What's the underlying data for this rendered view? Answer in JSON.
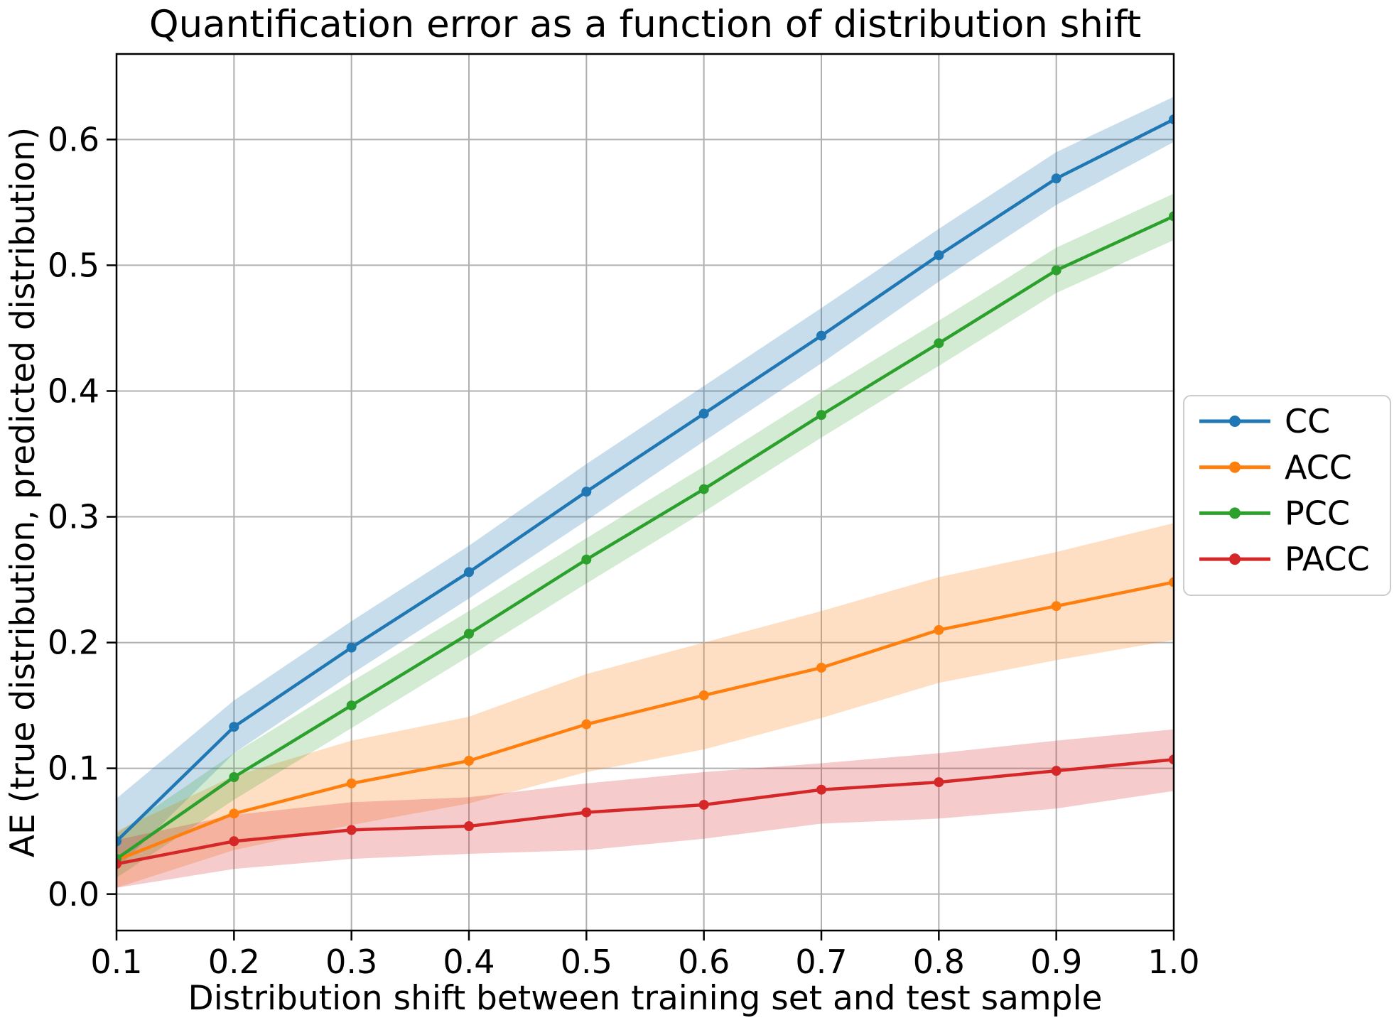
{
  "chart_data": {
    "type": "line",
    "title": "Quantification error as a function of distribution shift",
    "xlabel": "Distribution shift between training set and test sample",
    "ylabel": "AE (true distribution, predicted distribution)",
    "x": [
      0.1,
      0.2,
      0.3,
      0.4,
      0.5,
      0.6,
      0.7,
      0.8,
      0.9,
      1.0
    ],
    "x_tick_labels": [
      "0.1",
      "0.2",
      "0.3",
      "0.4",
      "0.5",
      "0.6",
      "0.7",
      "0.8",
      "0.9",
      "1.0"
    ],
    "y_ticks": [
      0.0,
      0.1,
      0.2,
      0.3,
      0.4,
      0.5,
      0.6
    ],
    "y_tick_labels": [
      "0.0",
      "0.1",
      "0.2",
      "0.3",
      "0.4",
      "0.5",
      "0.6"
    ],
    "xlim": [
      0.1,
      1.0
    ],
    "ylim": [
      -0.029,
      0.668
    ],
    "grid": true,
    "grid_color": "#b0b0b0",
    "spine_color": "#000000",
    "legend": {
      "position": "right-outside",
      "border_color": "#cccccc",
      "entries": [
        "CC",
        "ACC",
        "PCC",
        "PACC"
      ]
    },
    "series": [
      {
        "name": "CC",
        "color": "#1f77b4",
        "band_alpha": 0.25,
        "values": [
          0.042,
          0.133,
          0.196,
          0.256,
          0.32,
          0.382,
          0.444,
          0.508,
          0.569,
          0.616
        ],
        "band_lower": [
          0.02,
          0.112,
          0.175,
          0.235,
          0.297,
          0.36,
          0.422,
          0.487,
          0.548,
          0.598
        ],
        "band_upper": [
          0.076,
          0.154,
          0.217,
          0.277,
          0.342,
          0.404,
          0.466,
          0.529,
          0.59,
          0.634
        ]
      },
      {
        "name": "ACC",
        "color": "#ff7f0e",
        "band_alpha": 0.25,
        "values": [
          0.027,
          0.064,
          0.088,
          0.106,
          0.135,
          0.158,
          0.18,
          0.21,
          0.229,
          0.248
        ],
        "band_lower": [
          0.005,
          0.035,
          0.055,
          0.072,
          0.097,
          0.115,
          0.14,
          0.168,
          0.186,
          0.202
        ],
        "band_upper": [
          0.05,
          0.094,
          0.122,
          0.141,
          0.175,
          0.2,
          0.225,
          0.252,
          0.272,
          0.295
        ]
      },
      {
        "name": "PCC",
        "color": "#2ca02c",
        "band_alpha": 0.21,
        "values": [
          0.028,
          0.093,
          0.15,
          0.207,
          0.266,
          0.322,
          0.381,
          0.438,
          0.496,
          0.539
        ],
        "band_lower": [
          0.013,
          0.075,
          0.132,
          0.189,
          0.247,
          0.304,
          0.363,
          0.42,
          0.478,
          0.52
        ],
        "band_upper": [
          0.048,
          0.112,
          0.169,
          0.225,
          0.283,
          0.34,
          0.399,
          0.456,
          0.514,
          0.557
        ]
      },
      {
        "name": "PACC",
        "color": "#d62728",
        "band_alpha": 0.24,
        "values": [
          0.024,
          0.042,
          0.051,
          0.054,
          0.065,
          0.071,
          0.083,
          0.089,
          0.098,
          0.107
        ],
        "band_lower": [
          0.005,
          0.02,
          0.028,
          0.032,
          0.035,
          0.044,
          0.056,
          0.06,
          0.068,
          0.082
        ],
        "band_upper": [
          0.043,
          0.063,
          0.073,
          0.077,
          0.088,
          0.097,
          0.104,
          0.112,
          0.122,
          0.131
        ]
      }
    ]
  }
}
